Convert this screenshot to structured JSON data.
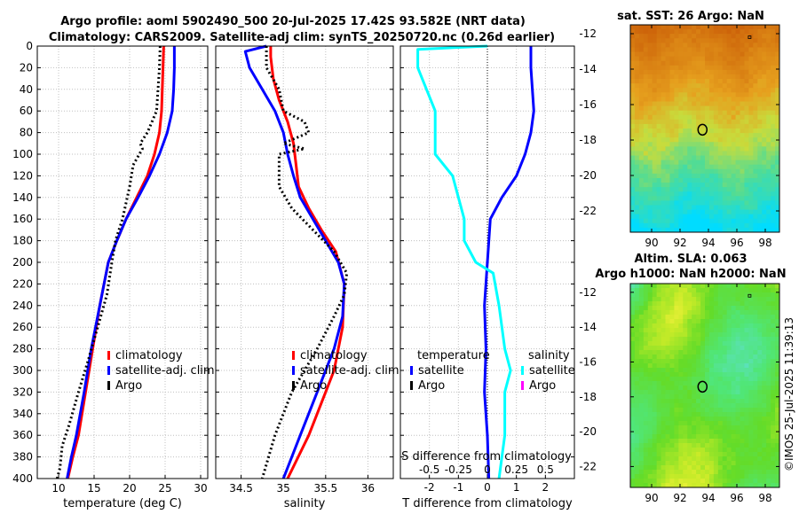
{
  "figure": {
    "title_line1": "Argo profile: aoml 5902490_500 20-Jul-2025 17.42S 93.582E (NRT data)",
    "title_line2": "Climatology: CARS2009. Satellite-adj clim: synTS_20250720.nc (0.26d earlier)",
    "credit": "©IMOS 25-Jul-2025 11:39:13"
  },
  "colors": {
    "climatology": "#ff0000",
    "satellite": "#0000ff",
    "argo": "#000000",
    "salinity_satellite": "#00ffff",
    "salinity_argo": "#ff00ff",
    "grid": "#c0c0c0"
  },
  "chart_data": [
    {
      "type": "line",
      "id": "temperature",
      "xlabel": "temperature (deg C)",
      "ylabel": "",
      "xlim": [
        7,
        31
      ],
      "ylim": [
        400,
        0
      ],
      "xticks": [
        10,
        15,
        20,
        25,
        30
      ],
      "yticks": [
        0,
        20,
        40,
        60,
        80,
        100,
        120,
        140,
        160,
        180,
        200,
        220,
        240,
        260,
        280,
        300,
        320,
        340,
        360,
        380,
        400
      ],
      "grid": true,
      "legend_position": "bottom-right",
      "legend": [
        "climatology",
        "satellite-adj. clim",
        "Argo"
      ],
      "series": [
        {
          "name": "climatology",
          "style": "solid",
          "color": "red",
          "x": [
            24.8,
            24.7,
            24.6,
            24.5,
            24.2,
            23.5,
            22.5,
            21.0,
            19.5,
            18.2,
            17.0,
            15.8,
            14.8,
            13.8,
            12.8,
            12.0,
            11.3
          ],
          "y": [
            0,
            20,
            40,
            60,
            80,
            100,
            120,
            140,
            160,
            180,
            200,
            240,
            280,
            320,
            360,
            380,
            400
          ]
        },
        {
          "name": "satellite-adj. clim",
          "style": "solid",
          "color": "blue",
          "x": [
            26.3,
            26.3,
            26.2,
            26.0,
            25.3,
            24.2,
            22.8,
            21.2,
            19.5,
            18.2,
            17.0,
            15.8,
            14.6,
            13.6,
            12.5,
            11.8,
            11.2
          ],
          "y": [
            0,
            20,
            40,
            60,
            80,
            100,
            120,
            140,
            160,
            180,
            200,
            240,
            280,
            320,
            360,
            380,
            400
          ]
        },
        {
          "name": "Argo",
          "style": "dotted",
          "color": "black",
          "x": [
            24.3,
            24.2,
            24.0,
            23.8,
            22.5,
            21.5,
            21.8,
            20.5,
            20.0,
            19.0,
            18.0,
            17.5,
            16.8,
            15.5,
            14.2,
            12.8,
            11.5,
            10.5,
            10.2,
            9.8
          ],
          "y": [
            0,
            20,
            40,
            60,
            80,
            90,
            95,
            110,
            130,
            160,
            180,
            200,
            230,
            260,
            290,
            320,
            350,
            370,
            390,
            400
          ]
        }
      ]
    },
    {
      "type": "line",
      "id": "salinity",
      "xlabel": "salinity",
      "ylabel": "",
      "xlim": [
        34.2,
        36.3
      ],
      "ylim": [
        400,
        0
      ],
      "xticks": [
        34.5,
        35,
        35.5,
        36
      ],
      "xtick_labels": [
        "34.5",
        "35",
        "35.5",
        "36"
      ],
      "grid": true,
      "legend_position": "bottom-right",
      "legend": [
        "climatology",
        "satellite-adj. clim",
        "Argo"
      ],
      "series": [
        {
          "name": "climatology",
          "style": "solid",
          "color": "red",
          "x": [
            34.85,
            34.85,
            34.88,
            34.95,
            35.05,
            35.12,
            35.15,
            35.18,
            35.3,
            35.45,
            35.62,
            35.72,
            35.7,
            35.65,
            35.6,
            35.5,
            35.3,
            35.05
          ],
          "y": [
            0,
            10,
            30,
            50,
            70,
            90,
            110,
            130,
            150,
            170,
            190,
            220,
            260,
            280,
            300,
            320,
            360,
            400
          ]
        },
        {
          "name": "satellite-adj. clim",
          "style": "solid",
          "color": "blue",
          "x": [
            34.8,
            34.55,
            34.6,
            34.75,
            34.9,
            35.0,
            35.05,
            35.12,
            35.2,
            35.35,
            35.5,
            35.65,
            35.72,
            35.7,
            35.6,
            35.4,
            35.2,
            35.0
          ],
          "y": [
            0,
            5,
            20,
            40,
            60,
            80,
            100,
            120,
            140,
            160,
            180,
            200,
            220,
            250,
            280,
            320,
            360,
            400
          ]
        },
        {
          "name": "Argo",
          "style": "dotted",
          "color": "black",
          "x": [
            34.8,
            34.8,
            34.95,
            35.0,
            35.25,
            35.3,
            35.15,
            35.0,
            35.25,
            34.95,
            34.95,
            35.1,
            35.35,
            35.6,
            35.75,
            35.72,
            35.6,
            35.4,
            35.1,
            34.9,
            34.75
          ],
          "y": [
            0,
            20,
            40,
            60,
            70,
            80,
            85,
            90,
            95,
            100,
            130,
            150,
            170,
            190,
            210,
            230,
            250,
            280,
            320,
            360,
            400
          ]
        }
      ]
    },
    {
      "type": "line",
      "id": "difference",
      "xlabel": "T difference from climatology",
      "xlabel_top": "S difference from climatology",
      "xlim": [
        -3,
        3
      ],
      "xlim_salinity": [
        -0.75,
        0.75
      ],
      "ylim": [
        400,
        0
      ],
      "xticks": [
        -2,
        -1,
        0,
        1,
        2
      ],
      "xtick_labels": [
        "-2",
        "-1",
        "0",
        "1",
        "2"
      ],
      "xticks_salinity": [
        -0.5,
        -0.25,
        0,
        0.25,
        0.5
      ],
      "xtick_labels_salinity": [
        "-0.5",
        "-0.25",
        "0",
        "0.25",
        "0.5"
      ],
      "grid": true,
      "legend_position": "bottom",
      "legend_headers": [
        "temperature",
        "salinity"
      ],
      "legend_temperature": [
        "satellite",
        "Argo"
      ],
      "legend_salinity": [
        "satellite",
        "Argo"
      ],
      "series": [
        {
          "name": "temperature satellite",
          "style": "solid",
          "color": "blue",
          "x": [
            1.5,
            1.5,
            1.6,
            1.5,
            1.3,
            1.0,
            0.5,
            0.1,
            0.0,
            -0.1,
            -0.05,
            -0.1,
            0.0,
            0.05
          ],
          "y": [
            0,
            20,
            60,
            80,
            100,
            120,
            140,
            160,
            200,
            240,
            280,
            320,
            360,
            400
          ]
        },
        {
          "name": "salinity satellite",
          "style": "solid",
          "color": "cyan",
          "x": [
            0,
            -0.6,
            -0.6,
            -0.45,
            -0.45,
            -0.3,
            -0.2,
            -0.2,
            -0.1,
            0.05,
            0.1,
            0.15,
            0.2,
            0.15,
            0.15,
            0.1
          ],
          "y": [
            0,
            3,
            20,
            60,
            100,
            120,
            160,
            180,
            200,
            210,
            240,
            280,
            300,
            320,
            360,
            400
          ]
        }
      ]
    },
    {
      "type": "heatmap",
      "id": "sst-map",
      "title": "sat. SST: 26 Argo: NaN",
      "xlim": [
        88.5,
        99
      ],
      "ylim": [
        -23.2,
        -11.5
      ],
      "xticks": [
        90,
        92,
        94,
        96,
        98
      ],
      "yticks": [
        -12,
        -14,
        -16,
        -18,
        -20,
        -22
      ],
      "float_position": [
        93.58,
        -17.42
      ]
    },
    {
      "type": "heatmap",
      "id": "sla-map",
      "title_line1": "Altim. SLA: 0.063",
      "title_line2": "Argo h1000: NaN h2000: NaN",
      "xlim": [
        88.5,
        99
      ],
      "ylim": [
        -23.2,
        -11.5
      ],
      "xticks": [
        90,
        92,
        94,
        96,
        98
      ],
      "yticks": [
        -12,
        -14,
        -16,
        -18,
        -20,
        -22
      ],
      "float_position": [
        93.58,
        -17.42
      ]
    }
  ]
}
